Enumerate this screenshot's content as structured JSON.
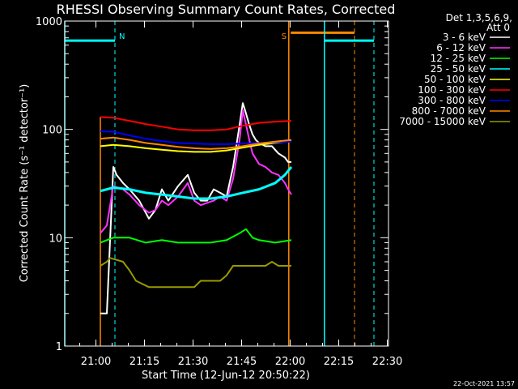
{
  "chart_data": {
    "type": "line",
    "title": "RHESSI Observing Summary Count Rates, Corrected",
    "xlabel": "Start Time (12-Jun-12 20:50:22)",
    "ylabel": "Corrected Count Rate (s⁻¹ detector⁻¹)",
    "ylim": [
      1,
      1000
    ],
    "yscale": "log",
    "xlim_minutes_after_start": [
      0,
      100
    ],
    "x_tick_labels": [
      "21:00",
      "21:15",
      "21:30",
      "21:45",
      "22:00",
      "22:15",
      "22:30"
    ],
    "x_tick_minutes_after_start": [
      9.633,
      24.633,
      39.633,
      54.633,
      69.633,
      84.633,
      99.633
    ],
    "y_tick_labels": [
      "1",
      "10",
      "100",
      "1000"
    ],
    "y_tick_values": [
      1,
      10,
      100,
      1000
    ],
    "legend_header": [
      "Det 1,3,5,6,9,",
      "Att 0"
    ],
    "legend_position": "right",
    "footer_date": "22-Oct-2021 13:57",
    "series": [
      {
        "name": "3 - 6 keV",
        "color": "#ffffff",
        "x": [
          11,
          13,
          15,
          16,
          18,
          20,
          23,
          26,
          28,
          30,
          32,
          35,
          38,
          40,
          42,
          44,
          46,
          48,
          50,
          52,
          54,
          55,
          56,
          57,
          58,
          59,
          60,
          62,
          64,
          66,
          68,
          69,
          70
        ],
        "y": [
          2,
          2,
          45,
          38,
          32,
          28,
          22,
          15,
          18,
          28,
          22,
          30,
          38,
          26,
          22,
          22,
          28,
          26,
          24,
          45,
          110,
          175,
          140,
          110,
          90,
          80,
          75,
          70,
          70,
          60,
          55,
          50,
          50
        ]
      },
      {
        "name": "6 - 12 keV",
        "color": "#ff33ff",
        "x": [
          11,
          13,
          15,
          18,
          20,
          23,
          26,
          28,
          30,
          32,
          35,
          38,
          40,
          42,
          44,
          46,
          48,
          50,
          52,
          54,
          55,
          56,
          57,
          58,
          60,
          62,
          64,
          66,
          68,
          69,
          70
        ],
        "y": [
          11,
          13,
          30,
          28,
          25,
          20,
          17,
          18,
          22,
          20,
          24,
          32,
          22,
          20,
          21,
          22,
          24,
          22,
          35,
          80,
          150,
          110,
          80,
          60,
          48,
          45,
          40,
          38,
          32,
          28,
          25
        ]
      },
      {
        "name": "12 - 25 keV",
        "color": "#00ff00",
        "x": [
          11,
          15,
          20,
          25,
          30,
          35,
          40,
          45,
          50,
          54,
          56,
          58,
          60,
          65,
          70
        ],
        "y": [
          9,
          10,
          10,
          9,
          9.5,
          9,
          9,
          9,
          9.5,
          11,
          12,
          10,
          9.5,
          9,
          9.5
        ]
      },
      {
        "name": "25 - 50 keV",
        "color": "#00ffff",
        "x": [
          11,
          15,
          20,
          25,
          30,
          35,
          40,
          45,
          50,
          55,
          60,
          65,
          68,
          70
        ],
        "y": [
          27,
          29,
          28,
          26,
          25,
          24,
          23,
          23,
          24,
          26,
          28,
          32,
          38,
          45
        ]
      },
      {
        "name": "50 - 100 keV",
        "color": "#ffff00",
        "x": [
          11,
          15,
          20,
          25,
          30,
          35,
          40,
          45,
          50,
          55,
          60,
          65,
          70
        ],
        "y": [
          70,
          72,
          70,
          67,
          65,
          63,
          62,
          62,
          64,
          68,
          72,
          75,
          78
        ]
      },
      {
        "name": "100 - 300 keV",
        "color": "#ff0000",
        "x": [
          11,
          15,
          20,
          25,
          30,
          35,
          40,
          45,
          50,
          55,
          60,
          65,
          70
        ],
        "y": [
          130,
          128,
          120,
          112,
          106,
          100,
          98,
          98,
          100,
          108,
          115,
          118,
          120
        ]
      },
      {
        "name": "300 - 800 keV",
        "color": "#0000ff",
        "x": [
          11,
          15,
          20,
          25,
          30,
          35,
          40,
          45,
          50,
          55,
          60,
          65,
          70
        ],
        "y": [
          96,
          95,
          88,
          82,
          78,
          75,
          74,
          73,
          73,
          74,
          75,
          76,
          77
        ]
      },
      {
        "name": "800 - 7000 keV",
        "color": "#ff8800",
        "x": [
          11,
          15,
          20,
          25,
          30,
          35,
          40,
          45,
          50,
          55,
          60,
          65,
          70
        ],
        "y": [
          82,
          84,
          80,
          75,
          72,
          69,
          67,
          66,
          67,
          70,
          74,
          77,
          80
        ]
      },
      {
        "name": "7000 - 15000 keV",
        "color": "#999900",
        "x": [
          11,
          13,
          14,
          18,
          20,
          22,
          26,
          30,
          35,
          40,
          42,
          45,
          48,
          50,
          52,
          55,
          58,
          60,
          62,
          64,
          66,
          68,
          70
        ],
        "y": [
          5.5,
          6,
          6.5,
          6,
          5,
          4,
          3.5,
          3.5,
          3.5,
          3.5,
          4,
          4,
          4,
          4.5,
          5.5,
          5.5,
          5.5,
          5.5,
          5.5,
          6,
          5.5,
          5.5,
          5.5
        ]
      }
    ],
    "annotations": [
      {
        "label": "N",
        "color": "#00ffff",
        "x": 15.5
      },
      {
        "label": "S",
        "color": "#ff8800",
        "x": 69.2
      }
    ]
  }
}
